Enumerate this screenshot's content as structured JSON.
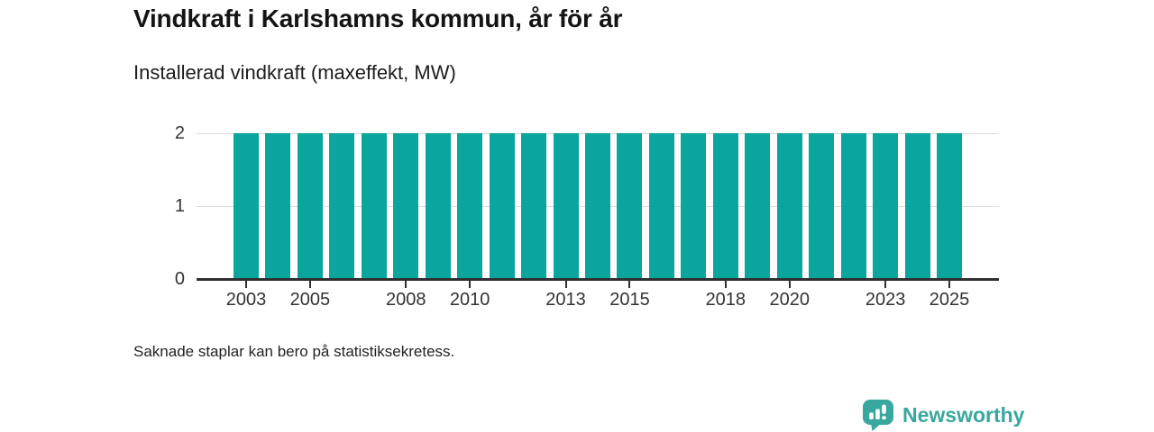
{
  "page": {
    "background": "#ffffff",
    "branding": {
      "name": "Newsworthy",
      "color": "#38a79e",
      "icon": "newsworthy-speech-bubble-chart-icon"
    }
  },
  "chart_data": {
    "type": "bar",
    "title": "Vindkraft i Karlshamns kommun, år för år",
    "subtitle": "Installerad vindkraft (maxeffekt, MW)",
    "xlabel": "",
    "ylabel": "",
    "categories": [
      2003,
      2004,
      2005,
      2006,
      2007,
      2008,
      2009,
      2010,
      2011,
      2012,
      2013,
      2014,
      2015,
      2016,
      2017,
      2018,
      2019,
      2020,
      2021,
      2022,
      2023,
      2024,
      2025
    ],
    "values": [
      2,
      2,
      2,
      2,
      2,
      2,
      2,
      2,
      2,
      2,
      2,
      2,
      2,
      2,
      2,
      2,
      2,
      2,
      2,
      2,
      2,
      2,
      2
    ],
    "x_tick_labels": [
      "2003",
      "2005",
      "2008",
      "2010",
      "2013",
      "2015",
      "2018",
      "2020",
      "2023",
      "2025"
    ],
    "y_tick_labels": [
      "0",
      "1",
      "2"
    ],
    "ylim": [
      0,
      2
    ],
    "grid": "horizontal",
    "legend": "none",
    "bar_color": "#0aa59c",
    "note": "Saknade staplar kan bero på statistiksekretess."
  }
}
